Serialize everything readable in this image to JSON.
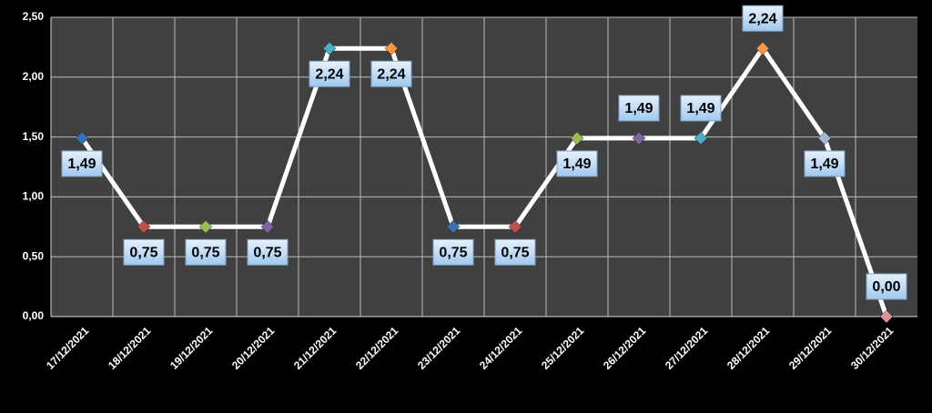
{
  "chart_data": {
    "type": "line",
    "categories": [
      "17/12/2021",
      "18/12/2021",
      "19/12/2021",
      "20/12/2021",
      "21/12/2021",
      "22/12/2021",
      "23/12/2021",
      "24/12/2021",
      "25/12/2021",
      "26/12/2021",
      "27/12/2021",
      "28/12/2021",
      "29/12/2021",
      "30/12/2021"
    ],
    "values": [
      1.49,
      0.75,
      0.75,
      0.75,
      2.24,
      2.24,
      0.75,
      0.75,
      1.49,
      1.49,
      1.49,
      2.24,
      1.49,
      0.0
    ],
    "value_labels": [
      "1,49",
      "0,75",
      "0,75",
      "0,75",
      "2,24",
      "2,24",
      "0,75",
      "0,75",
      "1,49",
      "1,49",
      "1,49",
      "2,24",
      "1,49",
      "0,00"
    ],
    "color": "#ffffff",
    "point_colors": [
      "#3a6fb0",
      "#c0504d",
      "#9bbb59",
      "#8064a2",
      "#4bacc6",
      "#f79646",
      "#3a6fb0",
      "#c0504d",
      "#9bbb59",
      "#8064a2",
      "#4bacc6",
      "#f79646",
      "#a5b6d4",
      "#d99694"
    ],
    "ylim": [
      0,
      2.5
    ],
    "yticks": [
      {
        "value": 0,
        "label": "0,00"
      },
      {
        "value": 0.5,
        "label": "0,50"
      },
      {
        "value": 1,
        "label": "1,00"
      },
      {
        "value": 1.5,
        "label": "1,50"
      },
      {
        "value": 2,
        "label": "2,00"
      },
      {
        "value": 2.5,
        "label": "2,50"
      }
    ],
    "grid": true
  }
}
